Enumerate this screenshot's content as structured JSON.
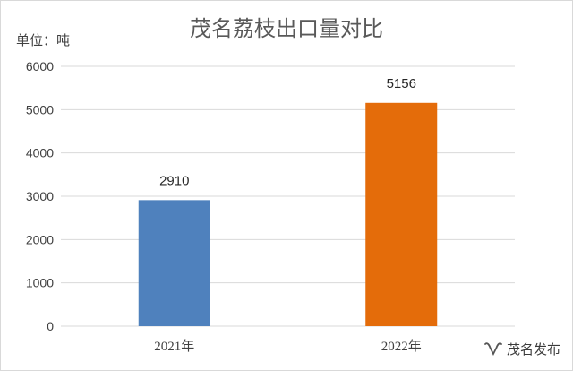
{
  "chart_data": {
    "type": "bar",
    "title": "茂名荔枝出口量对比",
    "unit_label": "单位：吨",
    "categories": [
      "2021年",
      "2022年"
    ],
    "values": [
      2910,
      5156
    ],
    "data_labels": [
      "2910",
      "5156"
    ],
    "bar_colors": [
      "#4f81bd",
      "#e46c0a"
    ],
    "ylim": [
      0,
      6000
    ],
    "yticks": [
      0,
      1000,
      2000,
      3000,
      4000,
      5000,
      6000
    ],
    "grid": true,
    "legend": "none"
  },
  "watermark": {
    "text": "茂名发布",
    "icon": "wechat-channel-icon"
  },
  "colors": {
    "grid": "#d9d9d9",
    "axis_text": "#404040"
  }
}
